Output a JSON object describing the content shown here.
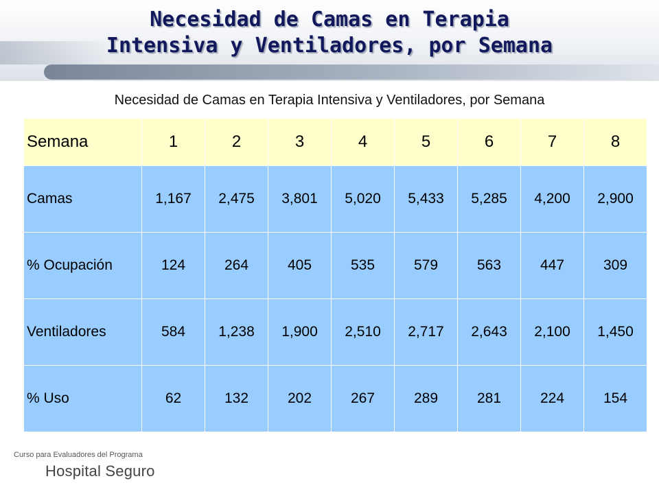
{
  "slide": {
    "title_line1": "Necesidad de Camas en Terapia",
    "title_line2": "Intensiva y Ventiladores, por Semana"
  },
  "table": {
    "caption": "Necesidad de Camas en Terapia Intensiva y Ventiladores, por Semana",
    "header": [
      "Semana",
      "1",
      "2",
      "3",
      "4",
      "5",
      "6",
      "7",
      "8"
    ],
    "rows": [
      {
        "label": "Camas",
        "values": [
          "1,167",
          "2,475",
          "3,801",
          "5,020",
          "5,433",
          "5,285",
          "4,200",
          "2,900"
        ]
      },
      {
        "label": "% Ocupación",
        "values": [
          "124",
          "264",
          "405",
          "535",
          "579",
          "563",
          "447",
          "309"
        ]
      },
      {
        "label": "Ventiladores",
        "values": [
          "584",
          "1,238",
          "1,900",
          "2,510",
          "2,717",
          "2,643",
          "2,100",
          "1,450"
        ]
      },
      {
        "label": "% Uso",
        "values": [
          "62",
          "132",
          "202",
          "267",
          "289",
          "281",
          "224",
          "154"
        ]
      }
    ]
  },
  "footer": {
    "line1": "Curso para Evaluadores del Programa",
    "line2": "Hospital Seguro"
  },
  "colors": {
    "title": "#12185c",
    "header_row_bg": "#ffffcc",
    "body_row_bg": "#99ccff"
  }
}
